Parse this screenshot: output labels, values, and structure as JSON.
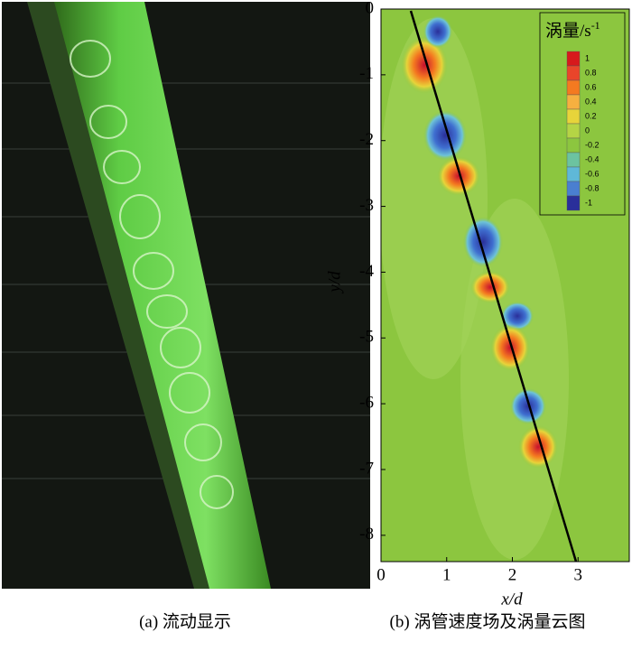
{
  "panels": [
    {
      "caption": "(a) 流动显示"
    },
    {
      "caption": "(b) 涡管速度场及涡量云图",
      "x_label": "x/d",
      "y_label": "y/d",
      "xlim": [
        0,
        3.78
      ],
      "ylim": [
        -8.4,
        0
      ],
      "xticks": [
        0,
        1,
        2,
        3
      ],
      "yticks": [
        0,
        -1,
        -2,
        -3,
        -4,
        -5,
        -6,
        -7,
        -8
      ],
      "colorbar": {
        "title": "涡量/s",
        "title_superscript": "-1",
        "ticks": [
          1,
          0.8,
          0.6,
          0.4,
          0.2,
          0,
          -0.2,
          -0.4,
          -0.6,
          -0.8,
          -1
        ]
      }
    }
  ]
}
